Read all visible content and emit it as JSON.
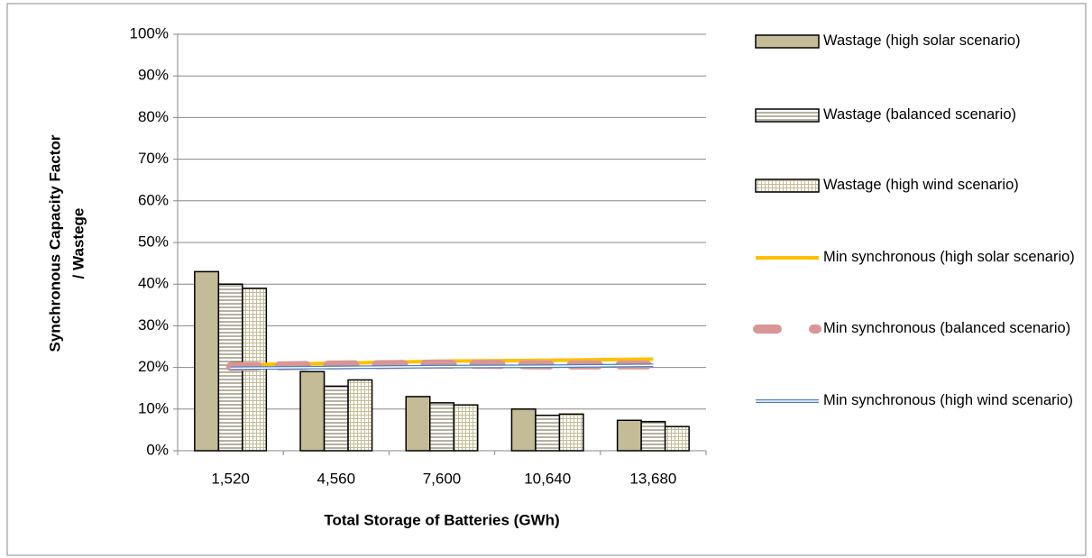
{
  "chart_data": {
    "type": "bar-line",
    "x_label": "Total Storage of Batteries (GWh)",
    "y_label": [
      "Synchronous Capacity Factor",
      "/ Wastege"
    ],
    "categories": [
      "1,520",
      "4,560",
      "7,600",
      "10,640",
      "13,680"
    ],
    "ylim": [
      0,
      100
    ],
    "yticks": [
      {
        "value": 0,
        "label": "0%"
      },
      {
        "value": 10,
        "label": "10%"
      },
      {
        "value": 20,
        "label": "20%"
      },
      {
        "value": 30,
        "label": "30%"
      },
      {
        "value": 40,
        "label": "40%"
      },
      {
        "value": 50,
        "label": "50%"
      },
      {
        "value": 60,
        "label": "60%"
      },
      {
        "value": 70,
        "label": "70%"
      },
      {
        "value": 80,
        "label": "80%"
      },
      {
        "value": 90,
        "label": "90%"
      },
      {
        "value": 100,
        "label": "100%"
      }
    ],
    "grid": true,
    "series": [
      {
        "name": "Wastage (high solar scenario)",
        "kind": "bar",
        "pattern": "solid",
        "color": "#c4bc96",
        "values": [
          43,
          19,
          13,
          10,
          7.3
        ]
      },
      {
        "name": "Wastage (balanced scenario)",
        "kind": "bar",
        "pattern": "horizontal",
        "color": "#c4bc96",
        "values": [
          40,
          15.5,
          11.5,
          8.5,
          7
        ]
      },
      {
        "name": "Wastage (high wind scenario)",
        "kind": "bar",
        "pattern": "grid",
        "color": "#c4bc96",
        "values": [
          39,
          17,
          11,
          8.8,
          5.8
        ]
      },
      {
        "name": "Min synchronous (high solar scenario)",
        "kind": "line",
        "style": "solid",
        "color": "#ffc000",
        "values": [
          20.6,
          21,
          21.5,
          21.7,
          22
        ]
      },
      {
        "name": "Min synchronous (balanced scenario)",
        "kind": "line",
        "style": "dashed",
        "color": "#d99694",
        "values": [
          20.2,
          20.6,
          20.8,
          20.6,
          20.6
        ]
      },
      {
        "name": "Min synchronous (high wind scenario)",
        "kind": "line",
        "style": "double",
        "color": "#4f81bd",
        "values": [
          19.8,
          20,
          20.2,
          20.3,
          20.5
        ]
      }
    ]
  }
}
